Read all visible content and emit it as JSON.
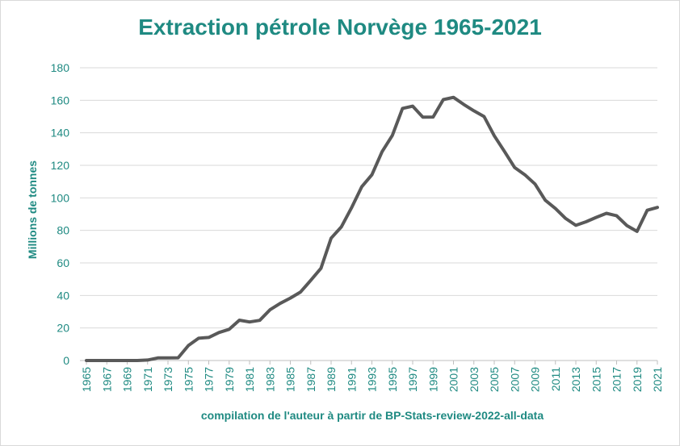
{
  "colors": {
    "accent": "#1f8a82",
    "line": "#595959",
    "grid": "#d9d9d9"
  },
  "chart_data": {
    "type": "line",
    "title": "Extraction  pétrole Norvège 1965-2021",
    "xlabel": "compilation de l'auteur à partir de BP-Stats-review-2022-all-data",
    "ylabel": "Millions de tonnes",
    "ylim": [
      0,
      180
    ],
    "yticks": [
      0,
      20,
      40,
      60,
      80,
      100,
      120,
      140,
      160,
      180
    ],
    "xtick_labels": [
      "1965",
      "1967",
      "1969",
      "1971",
      "1973",
      "1975",
      "1977",
      "1979",
      "1981",
      "1983",
      "1985",
      "1987",
      "1989",
      "1991",
      "1993",
      "1995",
      "1997",
      "1999",
      "2001",
      "2003",
      "2005",
      "2007",
      "2009",
      "2011",
      "2013",
      "2015",
      "2017",
      "2019",
      "2021"
    ],
    "grid": true,
    "legend": "none",
    "x": [
      1965,
      1966,
      1967,
      1968,
      1969,
      1970,
      1971,
      1972,
      1973,
      1974,
      1975,
      1976,
      1977,
      1978,
      1979,
      1980,
      1981,
      1982,
      1983,
      1984,
      1985,
      1986,
      1987,
      1988,
      1989,
      1990,
      1991,
      1992,
      1993,
      1994,
      1995,
      1996,
      1997,
      1998,
      1999,
      2000,
      2001,
      2002,
      2003,
      2004,
      2005,
      2006,
      2007,
      2008,
      2009,
      2010,
      2011,
      2012,
      2013,
      2014,
      2015,
      2016,
      2017,
      2018,
      2019,
      2020,
      2021
    ],
    "series": [
      {
        "values": [
          0,
          0,
          0,
          0,
          0,
          0,
          0.3,
          1.6,
          1.6,
          1.7,
          9.2,
          13.7,
          14.2,
          17.2,
          19.2,
          24.8,
          23.7,
          24.7,
          31.2,
          35.1,
          38.4,
          42.1,
          49.3,
          56.7,
          75.2,
          82.1,
          93.9,
          106.8,
          114.2,
          128.4,
          138.4,
          155,
          156.4,
          149.6,
          149.7,
          160.4,
          161.8,
          157.5,
          153.5,
          150,
          138.2,
          128.6,
          118.6,
          114.2,
          108.5,
          98.6,
          93.4,
          87.3,
          83.1,
          85.3,
          88,
          90.5,
          89,
          83,
          79.4,
          92.4,
          94.1
        ]
      }
    ]
  }
}
